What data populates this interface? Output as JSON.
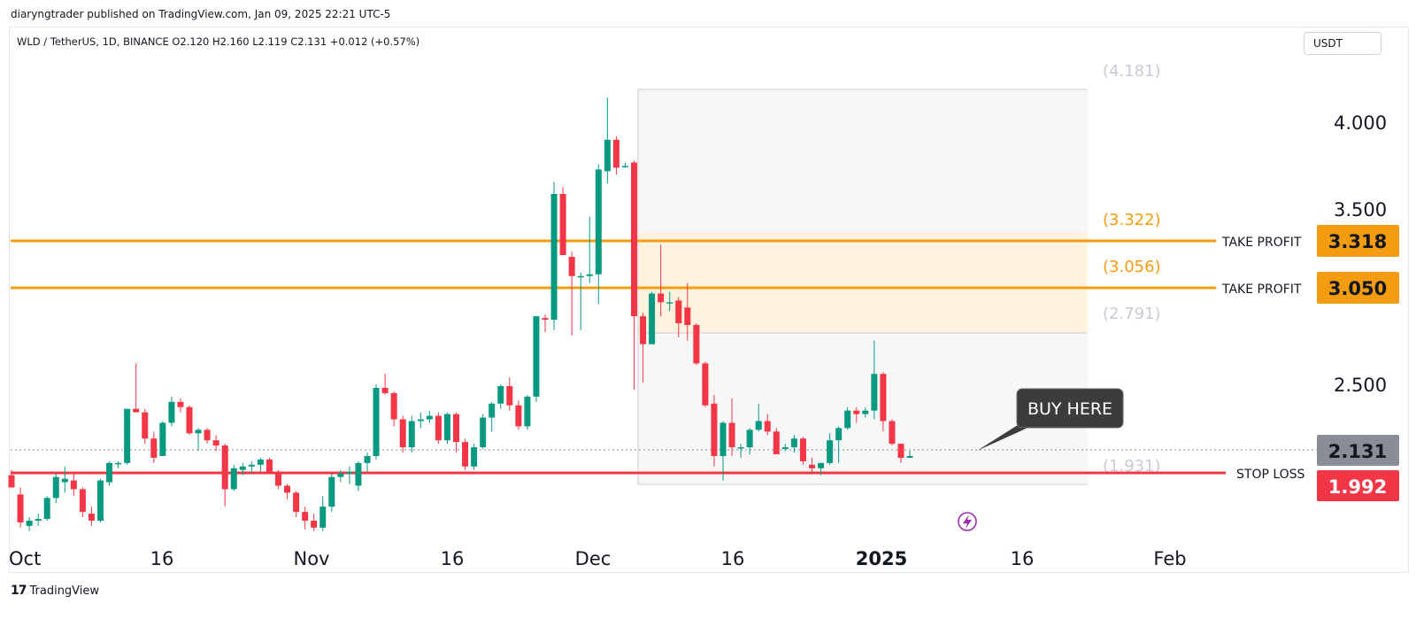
{
  "header": {
    "published_text": "diaryngtrader published on TradingView.com, Jan 09, 2025 22:21 UTC-5",
    "symbol_info": "WLD / TetherUS, 1D, BINANCE  O2.120  H2.160  L2.119  C2.131  +0.012 (+0.57%)",
    "currency_button": "USDT"
  },
  "footer": {
    "brand_mark": "17",
    "brand_name": "TradingView"
  },
  "chart_data": {
    "type": "candlestick",
    "symbol": "WLD / TetherUS",
    "interval": "1D",
    "exchange": "BINANCE",
    "ohlc_summary": {
      "open": 2.12,
      "high": 2.16,
      "low": 2.119,
      "close": 2.131,
      "change": "+0.012 (+0.57%)"
    },
    "y_axis": {
      "ticks": [
        "4.000",
        "3.500",
        "2.500"
      ],
      "range": [
        1.65,
        4.36
      ]
    },
    "x_axis": {
      "ticks": [
        {
          "label": "Oct",
          "bold": false
        },
        {
          "label": "16",
          "bold": false
        },
        {
          "label": "Nov",
          "bold": false
        },
        {
          "label": "16",
          "bold": false
        },
        {
          "label": "Dec",
          "bold": false
        },
        {
          "label": "16",
          "bold": false
        },
        {
          "label": "2025",
          "bold": true
        },
        {
          "label": "16",
          "bold": false
        },
        {
          "label": "Feb",
          "bold": false
        }
      ]
    },
    "candles": [
      {
        "o": 2.02,
        "h": 2.05,
        "l": 1.95,
        "c": 1.95
      },
      {
        "o": 1.91,
        "h": 1.95,
        "l": 1.72,
        "c": 1.75
      },
      {
        "o": 1.73,
        "h": 1.78,
        "l": 1.7,
        "c": 1.76
      },
      {
        "o": 1.76,
        "h": 1.8,
        "l": 1.73,
        "c": 1.77
      },
      {
        "o": 1.77,
        "h": 1.9,
        "l": 1.76,
        "c": 1.89
      },
      {
        "o": 1.89,
        "h": 2.03,
        "l": 1.86,
        "c": 2.01
      },
      {
        "o": 1.98,
        "h": 2.07,
        "l": 1.92,
        "c": 2.0
      },
      {
        "o": 1.99,
        "h": 2.04,
        "l": 1.9,
        "c": 1.94
      },
      {
        "o": 1.94,
        "h": 1.95,
        "l": 1.78,
        "c": 1.81
      },
      {
        "o": 1.8,
        "h": 1.84,
        "l": 1.73,
        "c": 1.76
      },
      {
        "o": 1.76,
        "h": 2.0,
        "l": 1.75,
        "c": 1.99
      },
      {
        "o": 1.98,
        "h": 2.1,
        "l": 1.96,
        "c": 2.09
      },
      {
        "o": 2.09,
        "h": 2.1,
        "l": 2.06,
        "c": 2.09
      },
      {
        "o": 2.09,
        "h": 2.4,
        "l": 2.08,
        "c": 2.4
      },
      {
        "o": 2.4,
        "h": 2.66,
        "l": 2.38,
        "c": 2.38
      },
      {
        "o": 2.38,
        "h": 2.4,
        "l": 2.2,
        "c": 2.23
      },
      {
        "o": 2.23,
        "h": 2.27,
        "l": 2.09,
        "c": 2.12
      },
      {
        "o": 2.13,
        "h": 2.33,
        "l": 2.13,
        "c": 2.32
      },
      {
        "o": 2.32,
        "h": 2.47,
        "l": 2.3,
        "c": 2.44
      },
      {
        "o": 2.44,
        "h": 2.46,
        "l": 2.38,
        "c": 2.41
      },
      {
        "o": 2.41,
        "h": 2.42,
        "l": 2.25,
        "c": 2.26
      },
      {
        "o": 2.26,
        "h": 2.29,
        "l": 2.16,
        "c": 2.28
      },
      {
        "o": 2.28,
        "h": 2.29,
        "l": 2.2,
        "c": 2.22
      },
      {
        "o": 2.22,
        "h": 2.25,
        "l": 2.16,
        "c": 2.19
      },
      {
        "o": 2.19,
        "h": 2.2,
        "l": 1.84,
        "c": 1.94
      },
      {
        "o": 1.94,
        "h": 2.08,
        "l": 1.93,
        "c": 2.06
      },
      {
        "o": 2.05,
        "h": 2.09,
        "l": 2.02,
        "c": 2.07
      },
      {
        "o": 2.07,
        "h": 2.1,
        "l": 2.03,
        "c": 2.08
      },
      {
        "o": 2.08,
        "h": 2.12,
        "l": 2.04,
        "c": 2.11
      },
      {
        "o": 2.11,
        "h": 2.12,
        "l": 2.04,
        "c": 2.04
      },
      {
        "o": 2.04,
        "h": 2.05,
        "l": 1.94,
        "c": 1.96
      },
      {
        "o": 1.96,
        "h": 1.97,
        "l": 1.88,
        "c": 1.92
      },
      {
        "o": 1.92,
        "h": 1.93,
        "l": 1.78,
        "c": 1.81
      },
      {
        "o": 1.81,
        "h": 1.84,
        "l": 1.71,
        "c": 1.76
      },
      {
        "o": 1.76,
        "h": 1.8,
        "l": 1.7,
        "c": 1.72
      },
      {
        "o": 1.72,
        "h": 1.9,
        "l": 1.7,
        "c": 1.84
      },
      {
        "o": 1.84,
        "h": 2.03,
        "l": 1.81,
        "c": 2.01
      },
      {
        "o": 2.01,
        "h": 2.05,
        "l": 1.98,
        "c": 2.03
      },
      {
        "o": 2.03,
        "h": 2.07,
        "l": 1.97,
        "c": 2.04
      },
      {
        "o": 1.96,
        "h": 2.1,
        "l": 1.93,
        "c": 2.09
      },
      {
        "o": 2.09,
        "h": 2.15,
        "l": 2.04,
        "c": 2.13
      },
      {
        "o": 2.13,
        "h": 2.54,
        "l": 2.11,
        "c": 2.52
      },
      {
        "o": 2.52,
        "h": 2.6,
        "l": 2.48,
        "c": 2.49
      },
      {
        "o": 2.49,
        "h": 2.5,
        "l": 2.3,
        "c": 2.34
      },
      {
        "o": 2.34,
        "h": 2.36,
        "l": 2.15,
        "c": 2.18
      },
      {
        "o": 2.18,
        "h": 2.36,
        "l": 2.15,
        "c": 2.33
      },
      {
        "o": 2.33,
        "h": 2.38,
        "l": 2.29,
        "c": 2.34
      },
      {
        "o": 2.34,
        "h": 2.39,
        "l": 2.32,
        "c": 2.36
      },
      {
        "o": 2.36,
        "h": 2.38,
        "l": 2.2,
        "c": 2.22
      },
      {
        "o": 2.22,
        "h": 2.38,
        "l": 2.2,
        "c": 2.37
      },
      {
        "o": 2.37,
        "h": 2.38,
        "l": 2.15,
        "c": 2.21
      },
      {
        "o": 2.21,
        "h": 2.23,
        "l": 2.05,
        "c": 2.07
      },
      {
        "o": 2.07,
        "h": 2.2,
        "l": 2.05,
        "c": 2.18
      },
      {
        "o": 2.18,
        "h": 2.37,
        "l": 2.17,
        "c": 2.35
      },
      {
        "o": 2.35,
        "h": 2.44,
        "l": 2.27,
        "c": 2.43
      },
      {
        "o": 2.43,
        "h": 2.54,
        "l": 2.4,
        "c": 2.53
      },
      {
        "o": 2.53,
        "h": 2.58,
        "l": 2.39,
        "c": 2.42
      },
      {
        "o": 2.42,
        "h": 2.45,
        "l": 2.28,
        "c": 2.3
      },
      {
        "o": 2.3,
        "h": 2.48,
        "l": 2.28,
        "c": 2.47
      },
      {
        "o": 2.47,
        "h": 2.93,
        "l": 2.44,
        "c": 2.93
      },
      {
        "o": 2.92,
        "h": 2.94,
        "l": 2.84,
        "c": 2.91
      },
      {
        "o": 2.91,
        "h": 3.7,
        "l": 2.85,
        "c": 3.63
      },
      {
        "o": 3.63,
        "h": 3.67,
        "l": 3.28,
        "c": 3.28
      },
      {
        "o": 3.27,
        "h": 3.3,
        "l": 2.82,
        "c": 3.16
      },
      {
        "o": 3.16,
        "h": 3.18,
        "l": 2.85,
        "c": 3.16
      },
      {
        "o": 3.16,
        "h": 3.5,
        "l": 3.12,
        "c": 3.17
      },
      {
        "o": 3.17,
        "h": 3.8,
        "l": 3.0,
        "c": 3.77
      },
      {
        "o": 3.76,
        "h": 4.18,
        "l": 3.69,
        "c": 3.94
      },
      {
        "o": 3.94,
        "h": 3.96,
        "l": 3.74,
        "c": 3.78
      },
      {
        "o": 3.79,
        "h": 3.81,
        "l": 3.78,
        "c": 3.79
      },
      {
        "o": 3.81,
        "h": 3.82,
        "l": 2.51,
        "c": 2.93
      },
      {
        "o": 2.93,
        "h": 2.95,
        "l": 2.55,
        "c": 2.77
      },
      {
        "o": 2.77,
        "h": 3.07,
        "l": 2.77,
        "c": 3.06
      },
      {
        "o": 3.06,
        "h": 3.34,
        "l": 2.93,
        "c": 3.01
      },
      {
        "o": 3.01,
        "h": 3.07,
        "l": 2.96,
        "c": 3.01
      },
      {
        "o": 3.02,
        "h": 3.04,
        "l": 2.81,
        "c": 2.89
      },
      {
        "o": 2.98,
        "h": 3.12,
        "l": 2.79,
        "c": 2.88
      },
      {
        "o": 2.88,
        "h": 2.89,
        "l": 2.65,
        "c": 2.66
      },
      {
        "o": 2.66,
        "h": 2.67,
        "l": 2.41,
        "c": 2.42
      },
      {
        "o": 2.43,
        "h": 2.48,
        "l": 2.07,
        "c": 2.13
      },
      {
        "o": 2.13,
        "h": 2.33,
        "l": 1.99,
        "c": 2.32
      },
      {
        "o": 2.32,
        "h": 2.46,
        "l": 2.13,
        "c": 2.18
      },
      {
        "o": 2.18,
        "h": 2.2,
        "l": 2.12,
        "c": 2.18
      },
      {
        "o": 2.18,
        "h": 2.29,
        "l": 2.14,
        "c": 2.28
      },
      {
        "o": 2.28,
        "h": 2.43,
        "l": 2.27,
        "c": 2.33
      },
      {
        "o": 2.33,
        "h": 2.37,
        "l": 2.25,
        "c": 2.27
      },
      {
        "o": 2.27,
        "h": 2.29,
        "l": 2.14,
        "c": 2.14
      },
      {
        "o": 2.17,
        "h": 2.2,
        "l": 2.16,
        "c": 2.18
      },
      {
        "o": 2.18,
        "h": 2.25,
        "l": 2.15,
        "c": 2.23
      },
      {
        "o": 2.23,
        "h": 2.24,
        "l": 2.08,
        "c": 2.1
      },
      {
        "o": 2.08,
        "h": 2.12,
        "l": 2.03,
        "c": 2.06
      },
      {
        "o": 2.06,
        "h": 2.09,
        "l": 2.02,
        "c": 2.09
      },
      {
        "o": 2.09,
        "h": 2.26,
        "l": 2.08,
        "c": 2.22
      },
      {
        "o": 2.22,
        "h": 2.3,
        "l": 2.09,
        "c": 2.29
      },
      {
        "o": 2.29,
        "h": 2.41,
        "l": 2.28,
        "c": 2.39
      },
      {
        "o": 2.39,
        "h": 2.41,
        "l": 2.32,
        "c": 2.37
      },
      {
        "o": 2.37,
        "h": 2.41,
        "l": 2.35,
        "c": 2.39
      },
      {
        "o": 2.39,
        "h": 2.79,
        "l": 2.34,
        "c": 2.6
      },
      {
        "o": 2.6,
        "h": 2.61,
        "l": 2.27,
        "c": 2.33
      },
      {
        "o": 2.33,
        "h": 2.34,
        "l": 2.19,
        "c": 2.2
      },
      {
        "o": 2.2,
        "h": 2.2,
        "l": 2.09,
        "c": 2.12
      },
      {
        "o": 2.12,
        "h": 2.16,
        "l": 2.12,
        "c": 2.13
      }
    ]
  },
  "drawings": {
    "fib_labels": [
      {
        "text": "(4.181)",
        "color": "#c7cbd4"
      },
      {
        "text": "(3.322)",
        "color": "#f39c12"
      },
      {
        "text": "(3.056)",
        "color": "#f39c12"
      },
      {
        "text": "(2.791)",
        "color": "#c7cbd4"
      },
      {
        "text": "(1.931)",
        "color": "#c7cbd4"
      }
    ],
    "take_profit_1": {
      "label": "TAKE PROFIT",
      "price": "3.318",
      "color": "#f39c12"
    },
    "take_profit_2": {
      "label": "TAKE PROFIT",
      "price": "3.050",
      "color": "#f39c12"
    },
    "stop_loss": {
      "label": "STOP LOSS",
      "price": "1.992",
      "color": "#f23645"
    },
    "last_price": {
      "price": "2.131",
      "color": "#8a8d96"
    },
    "callout": {
      "text": "BUY HERE",
      "bg": "#3c3c3c"
    }
  },
  "colors": {
    "up": "#089981",
    "down": "#f23645",
    "zone": "#fff3e0",
    "fib_box": "#f7f7f8"
  }
}
